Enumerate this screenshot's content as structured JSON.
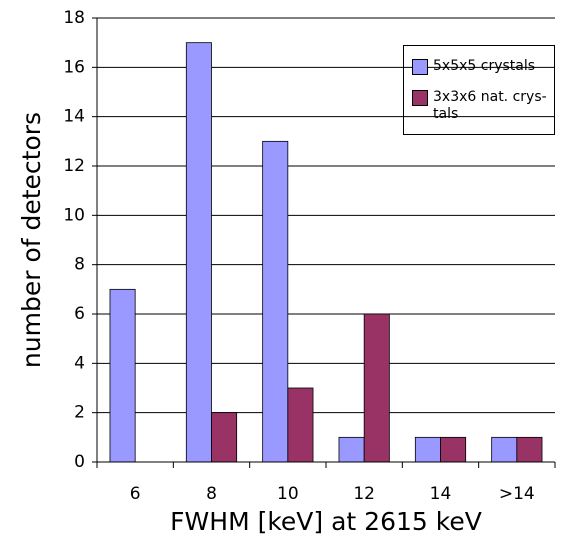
{
  "chart_data": {
    "type": "bar",
    "x_label": "FWHM [keV] at 2615 keV",
    "y_label": "number of detectors",
    "categories": [
      "6",
      "8",
      "10",
      "12",
      "14",
      ">14"
    ],
    "series": [
      {
        "name": "5x5x5 crystals",
        "color": "#9999ff",
        "values": [
          7,
          17,
          13,
          1,
          1,
          1
        ]
      },
      {
        "name": "3x3x6 nat. crys-tals",
        "color": "#993366",
        "values": [
          0,
          2,
          3,
          6,
          1,
          1
        ]
      }
    ],
    "ylim": [
      0,
      18
    ],
    "yticks": [
      0,
      2,
      4,
      6,
      8,
      10,
      12,
      14,
      16,
      18
    ],
    "grid": true
  }
}
